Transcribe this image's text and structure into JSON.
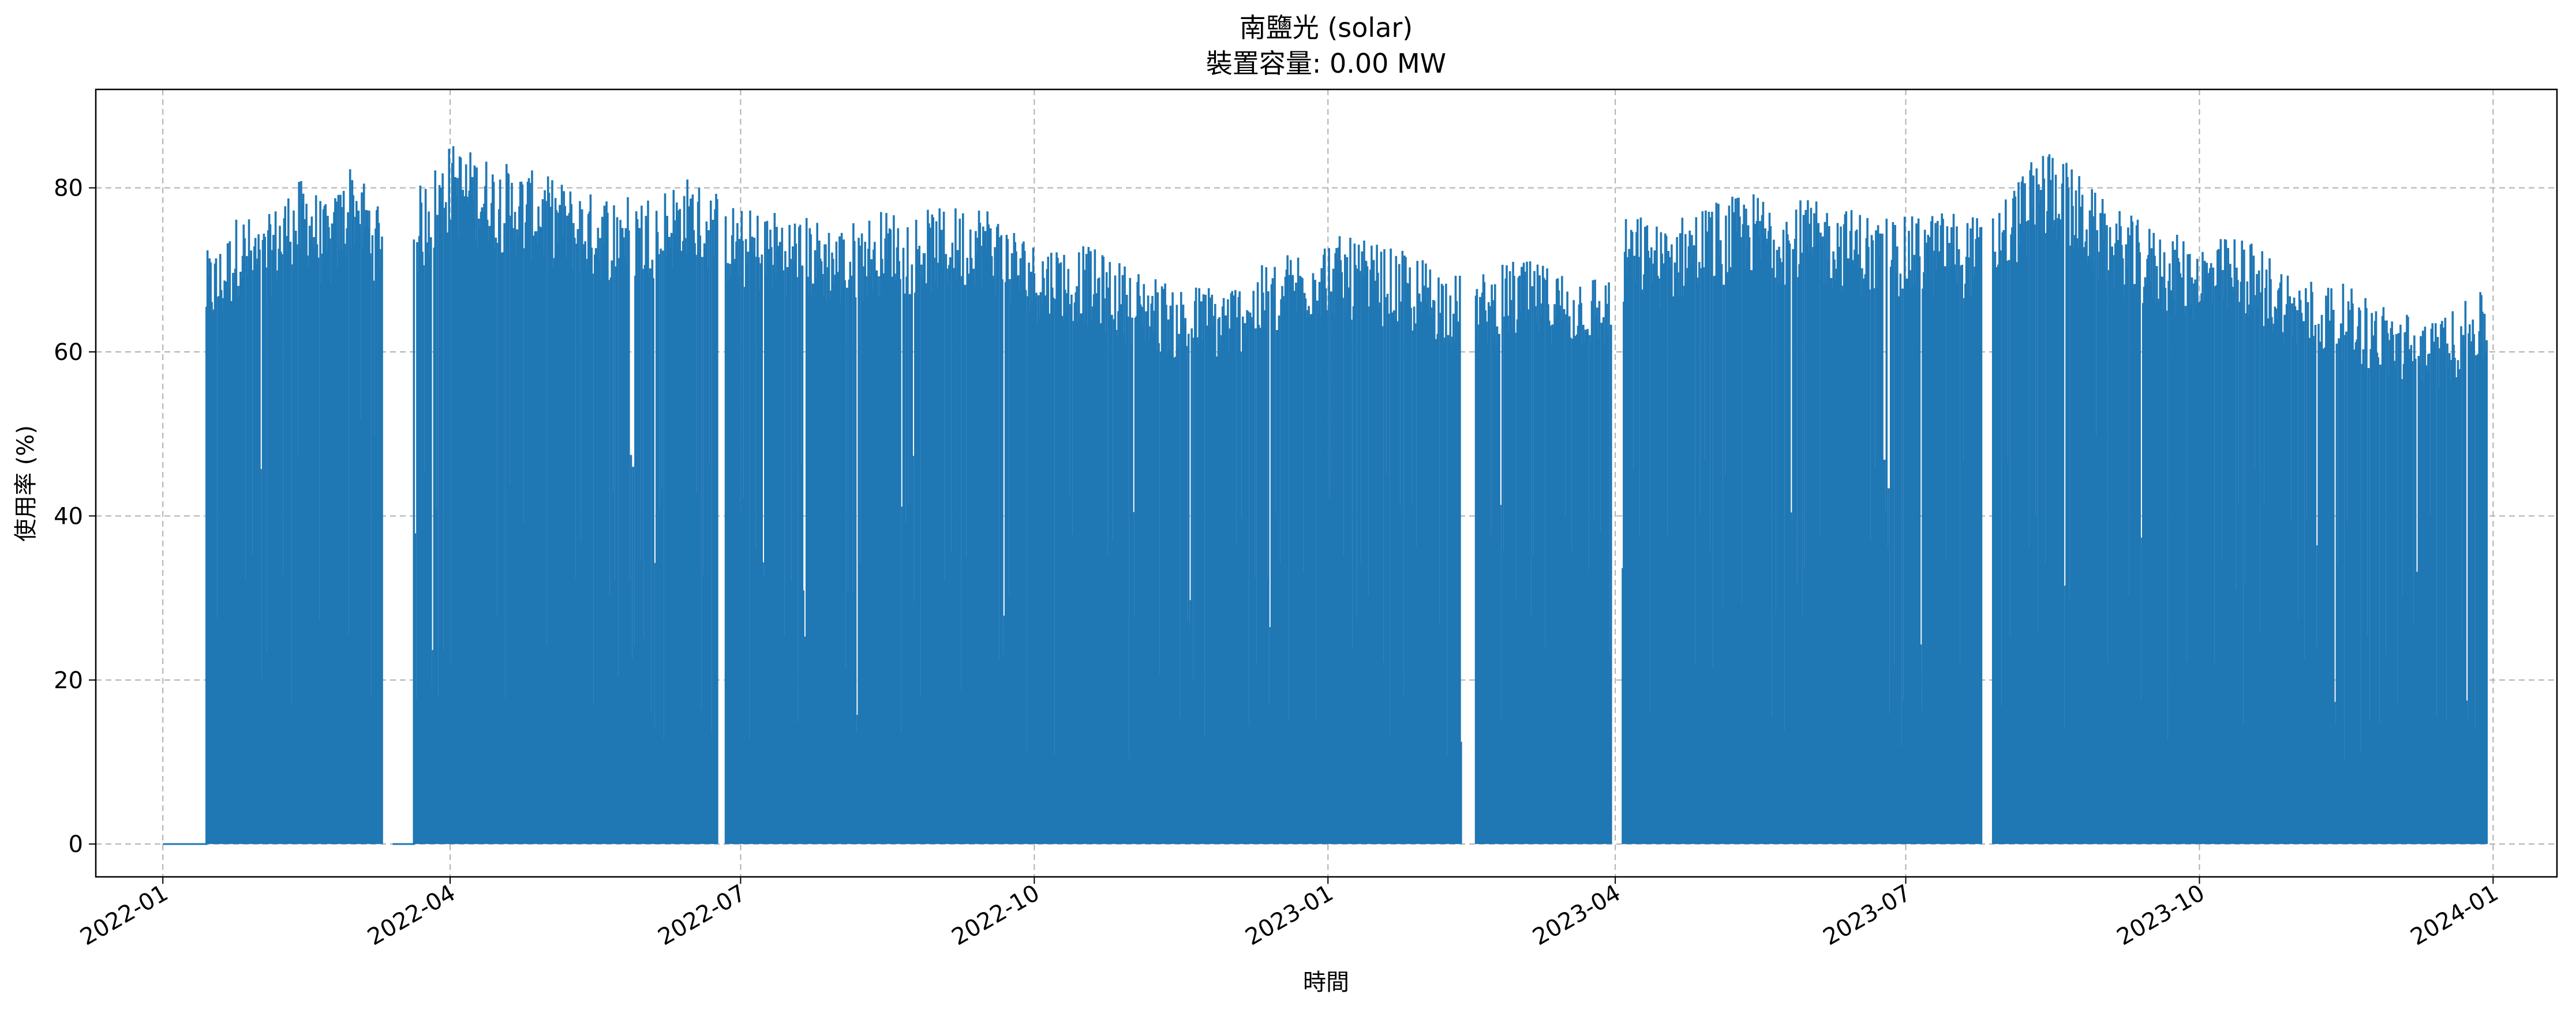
{
  "chart_data": {
    "type": "area",
    "title": "南鹽光 (solar)",
    "subtitle": "裝置容量: 0.00 MW",
    "xlabel": "時間",
    "ylabel": "使用率 (%)",
    "x_ticks": [
      "2022-01",
      "2022-04",
      "2022-07",
      "2022-10",
      "2023-01",
      "2023-04",
      "2023-07",
      "2023-10",
      "2024-01"
    ],
    "y_ticks": [
      "0",
      "20",
      "40",
      "60",
      "80"
    ],
    "ylim": [
      -4,
      92
    ],
    "xlim": [
      "2021-12-11",
      "2024-01-21"
    ],
    "grid": true,
    "grid_style": "dashed",
    "series": [
      {
        "color": "#1f77b4",
        "daily_peak_envelope": [
          [
            "2022-01-01",
            0
          ],
          [
            "2022-01-14",
            0
          ],
          [
            "2022-01-15",
            71
          ],
          [
            "2022-01-20",
            72
          ],
          [
            "2022-01-25",
            76
          ],
          [
            "2022-02-01",
            74
          ],
          [
            "2022-02-08",
            78
          ],
          [
            "2022-02-15",
            80
          ],
          [
            "2022-02-22",
            76
          ],
          [
            "2022-03-01",
            82
          ],
          [
            "2022-03-08",
            78
          ],
          [
            "2022-03-14",
            0
          ],
          [
            "2022-03-20",
            0
          ],
          [
            "2022-03-21",
            78
          ],
          [
            "2022-04-01",
            84
          ],
          [
            "2022-04-15",
            82
          ],
          [
            "2022-05-01",
            80
          ],
          [
            "2022-05-15",
            78
          ],
          [
            "2022-06-01",
            78
          ],
          [
            "2022-06-15",
            80
          ],
          [
            "2022-06-24",
            78
          ],
          [
            "2022-07-01",
            76
          ],
          [
            "2022-07-15",
            76
          ],
          [
            "2022-08-01",
            74
          ],
          [
            "2022-08-15",
            76
          ],
          [
            "2022-09-01",
            76
          ],
          [
            "2022-09-15",
            77
          ],
          [
            "2022-10-01",
            72
          ],
          [
            "2022-10-15",
            72
          ],
          [
            "2022-11-01",
            69
          ],
          [
            "2022-11-15",
            67
          ],
          [
            "2022-12-01",
            67
          ],
          [
            "2022-12-15",
            70
          ],
          [
            "2023-01-01",
            73
          ],
          [
            "2023-01-15",
            72
          ],
          [
            "2023-02-01",
            70
          ],
          [
            "2023-02-12",
            68
          ],
          [
            "2023-02-16",
            68
          ],
          [
            "2023-03-01",
            70
          ],
          [
            "2023-03-15",
            69
          ],
          [
            "2023-03-31",
            68
          ],
          [
            "2023-04-05",
            76
          ],
          [
            "2023-04-15",
            74
          ],
          [
            "2023-05-01",
            77
          ],
          [
            "2023-05-15",
            78
          ],
          [
            "2023-06-01",
            77
          ],
          [
            "2023-06-15",
            76
          ],
          [
            "2023-07-01",
            75
          ],
          [
            "2023-07-15",
            76
          ],
          [
            "2023-07-25",
            75
          ],
          [
            "2023-08-01",
            78
          ],
          [
            "2023-08-15",
            84
          ],
          [
            "2023-09-01",
            77
          ],
          [
            "2023-09-15",
            74
          ],
          [
            "2023-10-01",
            72
          ],
          [
            "2023-10-15",
            73
          ],
          [
            "2023-11-01",
            68
          ],
          [
            "2023-11-15",
            67
          ],
          [
            "2023-12-01",
            64
          ],
          [
            "2023-12-15",
            63
          ],
          [
            "2023-12-28",
            66
          ]
        ]
      }
    ]
  }
}
